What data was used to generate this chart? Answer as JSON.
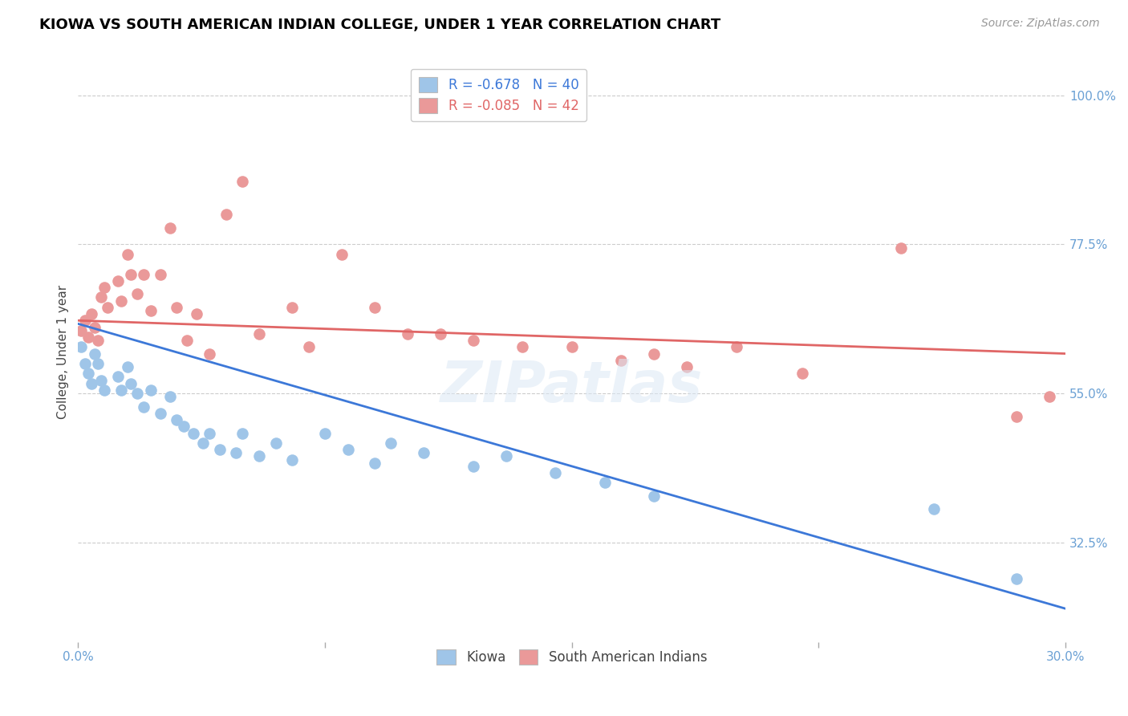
{
  "title": "KIOWA VS SOUTH AMERICAN INDIAN COLLEGE, UNDER 1 YEAR CORRELATION CHART",
  "source": "Source: ZipAtlas.com",
  "ylabel": "College, Under 1 year",
  "xmin": 0.0,
  "xmax": 0.3,
  "ymin": 0.175,
  "ymax": 1.05,
  "yticks": [
    0.325,
    0.55,
    0.775,
    1.0
  ],
  "ytick_labels": [
    "32.5%",
    "55.0%",
    "77.5%",
    "100.0%"
  ],
  "xticks": [
    0.0,
    0.075,
    0.15,
    0.225,
    0.3
  ],
  "xtick_labels": [
    "0.0%",
    "",
    "",
    "",
    "30.0%"
  ],
  "legend_blue_r": "-0.678",
  "legend_blue_n": "40",
  "legend_pink_r": "-0.085",
  "legend_pink_n": "42",
  "blue_color": "#9fc5e8",
  "pink_color": "#ea9999",
  "blue_line_color": "#3c78d8",
  "pink_line_color": "#e06666",
  "title_color": "#000000",
  "source_color": "#999999",
  "tick_color": "#6aa0d4",
  "grid_color": "#cccccc",
  "background_color": "#ffffff",
  "kiowa_x": [
    0.001,
    0.002,
    0.003,
    0.004,
    0.005,
    0.006,
    0.007,
    0.008,
    0.012,
    0.013,
    0.015,
    0.016,
    0.018,
    0.02,
    0.022,
    0.025,
    0.028,
    0.03,
    0.032,
    0.035,
    0.038,
    0.04,
    0.043,
    0.048,
    0.05,
    0.055,
    0.06,
    0.065,
    0.075,
    0.082,
    0.09,
    0.095,
    0.105,
    0.12,
    0.13,
    0.145,
    0.16,
    0.175,
    0.26,
    0.285
  ],
  "kiowa_y": [
    0.62,
    0.595,
    0.58,
    0.565,
    0.61,
    0.595,
    0.57,
    0.555,
    0.575,
    0.555,
    0.59,
    0.565,
    0.55,
    0.53,
    0.555,
    0.52,
    0.545,
    0.51,
    0.5,
    0.49,
    0.475,
    0.49,
    0.465,
    0.46,
    0.49,
    0.455,
    0.475,
    0.45,
    0.49,
    0.465,
    0.445,
    0.475,
    0.46,
    0.44,
    0.455,
    0.43,
    0.415,
    0.395,
    0.375,
    0.27
  ],
  "pink_x": [
    0.001,
    0.002,
    0.003,
    0.004,
    0.005,
    0.006,
    0.007,
    0.008,
    0.009,
    0.012,
    0.013,
    0.015,
    0.016,
    0.018,
    0.02,
    0.022,
    0.025,
    0.028,
    0.03,
    0.033,
    0.036,
    0.04,
    0.045,
    0.05,
    0.055,
    0.065,
    0.07,
    0.08,
    0.09,
    0.1,
    0.11,
    0.12,
    0.135,
    0.15,
    0.165,
    0.175,
    0.185,
    0.2,
    0.22,
    0.25,
    0.285,
    0.295
  ],
  "pink_y": [
    0.645,
    0.66,
    0.635,
    0.67,
    0.65,
    0.63,
    0.695,
    0.71,
    0.68,
    0.72,
    0.69,
    0.76,
    0.73,
    0.7,
    0.73,
    0.675,
    0.73,
    0.8,
    0.68,
    0.63,
    0.67,
    0.61,
    0.82,
    0.87,
    0.64,
    0.68,
    0.62,
    0.76,
    0.68,
    0.64,
    0.64,
    0.63,
    0.62,
    0.62,
    0.6,
    0.61,
    0.59,
    0.62,
    0.58,
    0.77,
    0.515,
    0.545
  ],
  "blue_line_x": [
    0.0,
    0.3
  ],
  "blue_line_y": [
    0.655,
    0.225
  ],
  "pink_line_x": [
    0.0,
    0.3
  ],
  "pink_line_y": [
    0.66,
    0.61
  ]
}
